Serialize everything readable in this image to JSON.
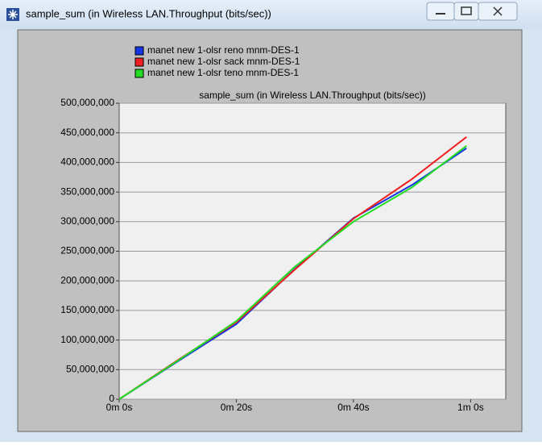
{
  "window_title": "sample_sum (in Wireless LAN.Throughput (bits/sec))",
  "chart_data": {
    "type": "line",
    "title": "sample_sum (in Wireless LAN.Throughput (bits/sec))",
    "x": [
      0,
      10,
      20,
      30,
      40,
      50,
      59.3
    ],
    "series": [
      {
        "name": "manet new 1-olsr reno mnm-DES-1",
        "color": "#1434e6",
        "values": [
          0,
          64000000,
          127000000,
          220000000,
          306000000,
          362000000,
          424000000
        ]
      },
      {
        "name": "manet new 1-olsr sack mnm-DES-1",
        "color": "#f02020",
        "values": [
          0,
          66000000,
          130000000,
          219000000,
          305000000,
          372000000,
          443000000
        ]
      },
      {
        "name": "manet new 1-olsr teno mnm-DES-1",
        "color": "#22dd22",
        "values": [
          0,
          65000000,
          132000000,
          224000000,
          300000000,
          358000000,
          428000000
        ]
      }
    ],
    "xlim": [
      0,
      66
    ],
    "xticks": [
      {
        "value": 0,
        "label": "0m 0s"
      },
      {
        "value": 20,
        "label": "0m 20s"
      },
      {
        "value": 40,
        "label": "0m 40s"
      },
      {
        "value": 60,
        "label": "1m 0s"
      }
    ],
    "ylim": [
      0,
      500000000
    ],
    "yticks": [
      0,
      {
        "value": 50000000,
        "label": "50,000,000"
      },
      {
        "value": 100000000,
        "label": "100,000,000"
      },
      {
        "value": 150000000,
        "label": "150,000,000"
      },
      {
        "value": 200000000,
        "label": "200,000,000"
      },
      {
        "value": 250000000,
        "label": "250,000,000"
      },
      {
        "value": 300000000,
        "label": "300,000,000"
      },
      {
        "value": 350000000,
        "label": "350,000,000"
      },
      {
        "value": 400000000,
        "label": "400,000,000"
      },
      {
        "value": 450000000,
        "label": "450,000,000"
      },
      {
        "value": 500000000,
        "label": "500,000,000"
      }
    ],
    "grid": true
  }
}
